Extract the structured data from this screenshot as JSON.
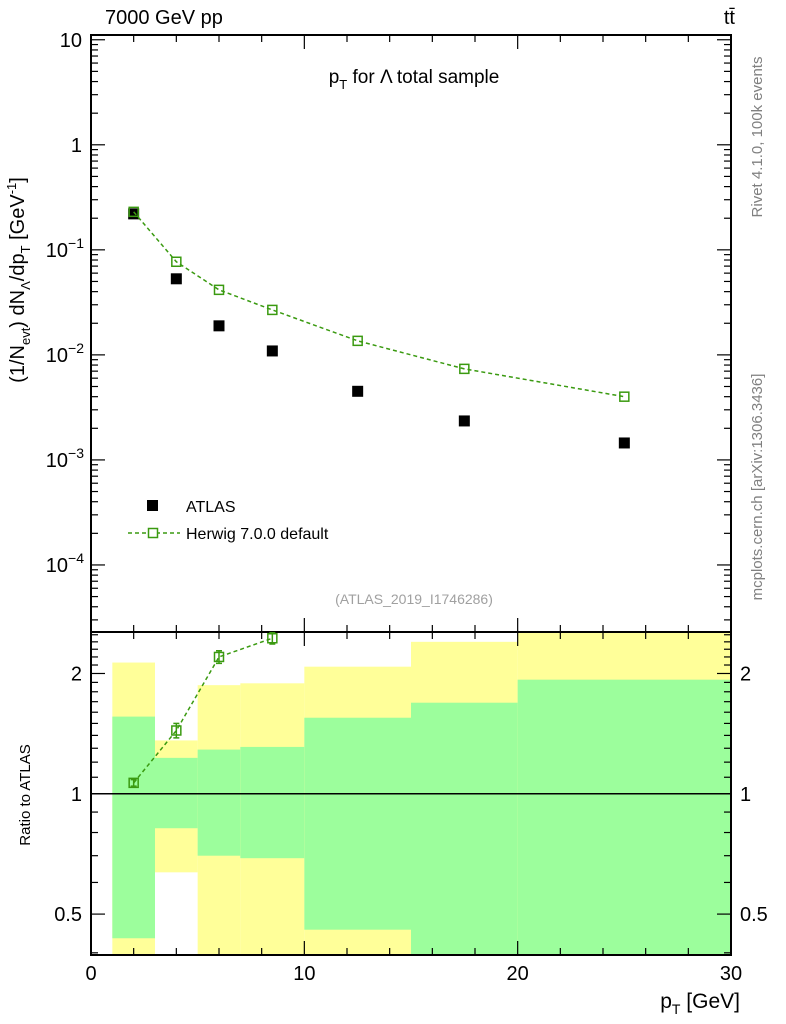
{
  "header": {
    "left": "7000 GeV pp",
    "right": "tt̄"
  },
  "side": {
    "rivet": "Rivet 4.1.0,  100k events",
    "mcplots": "mcplots.cern.ch [arXiv:1306.3436]"
  },
  "watermark": "(ATLAS_2019_I1746286)",
  "colors": {
    "data": "#000000",
    "mc": "#3a9a10",
    "band_stat": "#9cfe9c",
    "band_total": "#ffff99"
  },
  "chart_data": [
    {
      "type": "scatter",
      "title": "p_T for Λ total sample",
      "title_parts": {
        "p": "p",
        "sub": "T",
        "rest": " for Λ total sample"
      },
      "ylabel": "(1/N_evt) dN_Λ/dp_T [GeV^-1]",
      "ylabel_parts": {
        "a": "(1/N",
        "a_sub": "evt",
        "b": ") dN",
        "b_sub": "Λ",
        "c": "/dp",
        "c_sub": "T",
        "d": " [GeV",
        "d_sup": "-1",
        "e": "]"
      },
      "xlabel": "p_T [GeV]",
      "xlim": [
        0,
        30
      ],
      "ylim": [
        2.3e-05,
        11.1
      ],
      "yscale": "log",
      "yticks": [
        {
          "v": 10,
          "label": "10"
        },
        {
          "v": 1,
          "label": "1"
        },
        {
          "v": 0.1,
          "label": "10",
          "exp": "−1"
        },
        {
          "v": 0.01,
          "label": "10",
          "exp": "−2"
        },
        {
          "v": 0.001,
          "label": "10",
          "exp": "−3"
        },
        {
          "v": 0.0001,
          "label": "10",
          "exp": "−4"
        }
      ],
      "legend_position": "bottom-left",
      "series": [
        {
          "name": "ATLAS",
          "marker": "filled-square",
          "x": [
            2,
            4,
            6,
            8.5,
            12.5,
            17.5,
            25
          ],
          "y": [
            0.22,
            0.053,
            0.0189,
            0.0109,
            0.0045,
            0.00235,
            0.00145
          ]
        },
        {
          "name": "Herwig 7.0.0 default",
          "marker": "open-square",
          "line": "dashed",
          "x": [
            2,
            4,
            6,
            8.5,
            12.5,
            17.5,
            25
          ],
          "y": [
            0.23,
            0.077,
            0.0416,
            0.0268,
            0.0136,
            0.00736,
            0.004
          ]
        }
      ]
    },
    {
      "type": "scatter",
      "ylabel": "Ratio to ATLAS",
      "xlabel": "p_T [GeV]",
      "xlabel_parts": {
        "p": "p",
        "sub": "T",
        "rest": " [GeV]"
      },
      "xlim": [
        0,
        30
      ],
      "ylim": [
        0.395,
        2.54
      ],
      "yscale": "log",
      "xticks": [
        {
          "v": 0,
          "label": "0"
        },
        {
          "v": 10,
          "label": "10"
        },
        {
          "v": 20,
          "label": "20"
        },
        {
          "v": 30,
          "label": "30"
        }
      ],
      "yticks": [
        {
          "v": 2,
          "label": "2"
        },
        {
          "v": 1,
          "label": "1"
        },
        {
          "v": 0.5,
          "label": "0.5"
        }
      ],
      "bands": {
        "bin_edges": [
          1,
          3,
          5,
          7,
          10,
          15,
          20,
          30
        ],
        "total_up": [
          2.13,
          1.36,
          1.87,
          1.89,
          2.08,
          2.4,
          2.6
        ],
        "stat_up": [
          1.56,
          1.23,
          1.29,
          1.31,
          1.55,
          1.69,
          1.93
        ],
        "stat_down": [
          0.435,
          0.82,
          0.7,
          0.69,
          0.457,
          0.39,
          0.39
        ],
        "total_down": [
          0.39,
          0.636,
          0.39,
          0.39,
          0.39,
          0.39,
          0.39
        ]
      },
      "series": [
        {
          "name": "Herwig 7.0.0 default / ATLAS",
          "x": [
            2,
            4,
            6,
            8.5
          ],
          "y": [
            1.065,
            1.44,
            2.2,
            2.45
          ],
          "err": [
            0.02,
            0.06,
            0.08,
            0.08
          ]
        }
      ]
    }
  ]
}
